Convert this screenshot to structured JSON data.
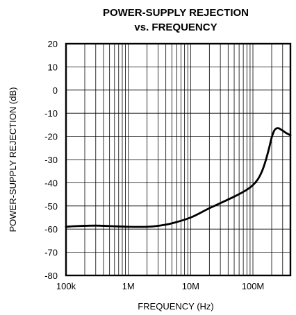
{
  "chart_data": {
    "type": "line",
    "title_line1": "POWER-SUPPLY REJECTION",
    "title_line2": "vs. FREQUENCY",
    "xlabel": "FREQUENCY (Hz)",
    "ylabel": "POWER-SUPPLY REJECTION (dB)",
    "xscale": "log",
    "xlim": [
      100000,
      400000000
    ],
    "ylim": [
      -80,
      20
    ],
    "grid": true,
    "x_ticks": [
      {
        "value": 100000,
        "label": "100k"
      },
      {
        "value": 1000000,
        "label": "1M"
      },
      {
        "value": 10000000,
        "label": "10M"
      },
      {
        "value": 100000000,
        "label": "100M"
      }
    ],
    "y_ticks": [
      {
        "value": 20,
        "label": "20"
      },
      {
        "value": 10,
        "label": "10"
      },
      {
        "value": 0,
        "label": "0"
      },
      {
        "value": -10,
        "label": "-10"
      },
      {
        "value": -20,
        "label": "-20"
      },
      {
        "value": -30,
        "label": "-30"
      },
      {
        "value": -40,
        "label": "-40"
      },
      {
        "value": -50,
        "label": "-50"
      },
      {
        "value": -60,
        "label": "-60"
      },
      {
        "value": -70,
        "label": "-70"
      },
      {
        "value": -80,
        "label": "-80"
      }
    ],
    "series": [
      {
        "x": [
          100000,
          150000,
          300000,
          500000,
          1000000,
          2000000,
          3000000,
          5000000,
          10000000,
          20000000,
          50000000,
          80000000,
          100000000,
          120000000,
          140000000,
          160000000,
          180000000,
          200000000,
          220000000,
          240000000,
          260000000,
          280000000,
          300000000,
          340000000,
          400000000
        ],
        "y": [
          -59,
          -58.7,
          -58.5,
          -58.7,
          -59,
          -59,
          -58.6,
          -57.5,
          -55,
          -51,
          -46,
          -43,
          -41,
          -38.5,
          -35,
          -30.5,
          -25.5,
          -20.5,
          -17.5,
          -16.5,
          -16.5,
          -17,
          -17.5,
          -18.5,
          -19.5
        ]
      }
    ]
  }
}
